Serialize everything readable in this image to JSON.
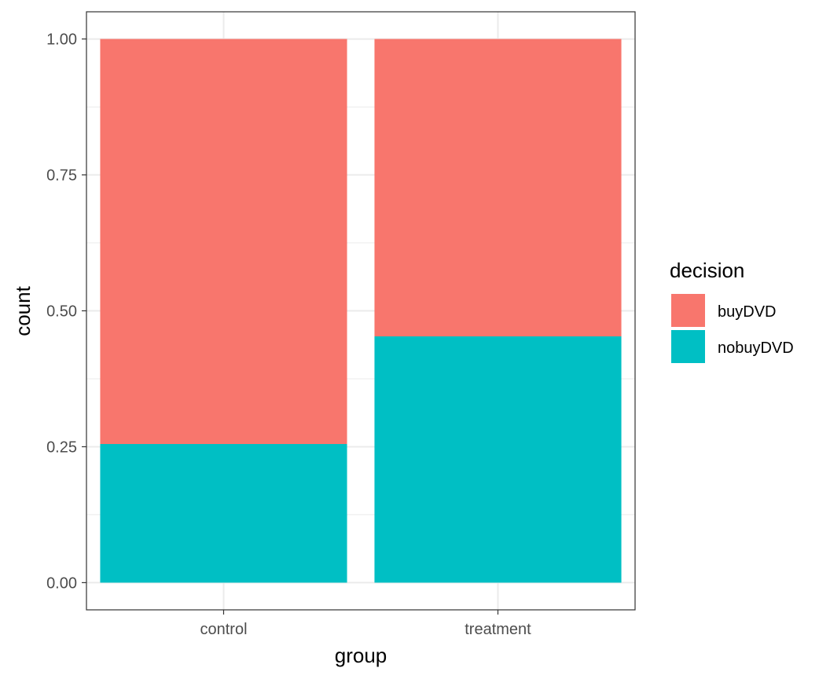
{
  "chart_data": {
    "type": "bar",
    "stacked": true,
    "categories": [
      "control",
      "treatment"
    ],
    "series": [
      {
        "name": "buyDVD",
        "values": [
          0.745,
          0.547
        ],
        "color": "#F8766D"
      },
      {
        "name": "nobuyDVD",
        "values": [
          0.255,
          0.453
        ],
        "color": "#00BFC4"
      }
    ],
    "xlabel": "group",
    "ylabel": "count",
    "ylim": [
      -0.05,
      1.05
    ],
    "y_ticks": [
      "0.00",
      "0.25",
      "0.50",
      "0.75",
      "1.00"
    ],
    "grid": true,
    "legend": {
      "title": "decision",
      "placement": "right"
    }
  }
}
